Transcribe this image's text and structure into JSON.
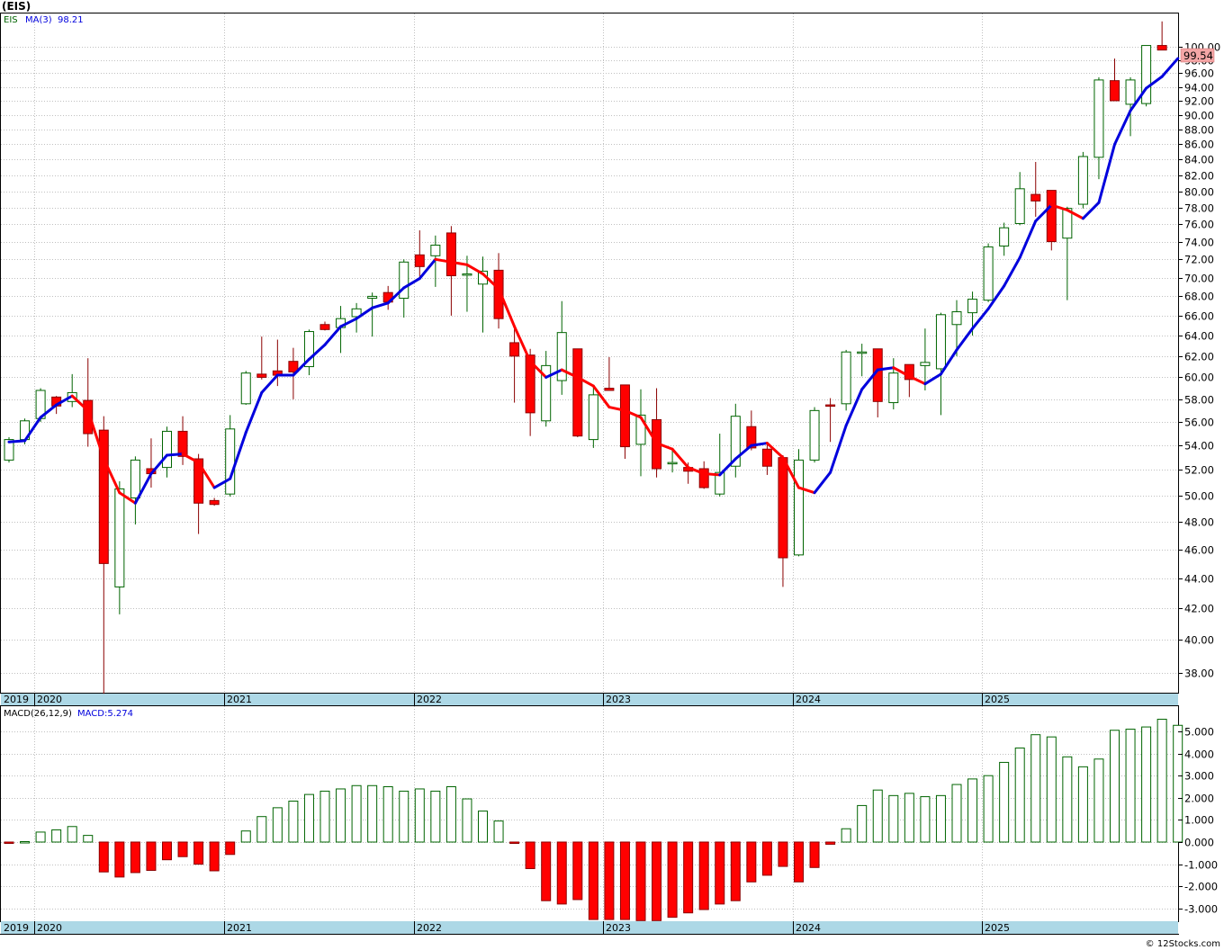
{
  "symbol_title": "(EIS)",
  "watermark": "© 12Stocks.com",
  "price_panel": {
    "legend_symbol": "EIS",
    "ma_label": "MA(3)",
    "ma_value": "98.21",
    "last_price": "99.54",
    "y_ticks": [
      "38.00",
      "40.00",
      "42.00",
      "44.00",
      "46.00",
      "48.00",
      "50.00",
      "52.00",
      "54.00",
      "56.00",
      "58.00",
      "60.00",
      "62.00",
      "64.00",
      "66.00",
      "68.00",
      "70.00",
      "72.00",
      "74.00",
      "76.00",
      "78.00",
      "80.00",
      "82.00",
      "84.00",
      "86.00",
      "88.00",
      "90.00",
      "92.00",
      "94.00",
      "96.00",
      "98.00",
      "100.00"
    ]
  },
  "macd_panel": {
    "label": "MACD(26,12,9)",
    "value_label": "MACD:5.274",
    "y_ticks": [
      "-3.000",
      "-2.000",
      "-1.000",
      "0.000",
      "1.000",
      "2.000",
      "3.000",
      "4.000",
      "5.000"
    ]
  },
  "x_axis": {
    "years": [
      "2019",
      "2020",
      "2021",
      "2022",
      "2023",
      "2024",
      "2025"
    ]
  },
  "colors": {
    "up": "#006400",
    "down": "#ff0000",
    "ma_up": "#0000dd",
    "ma_down": "#ff0000",
    "axis_band": "#add8e6",
    "grid": "#c0c0c0"
  },
  "chart_data": [
    {
      "type": "candlestick",
      "title": "(EIS)",
      "interval": "monthly",
      "ylim": [
        36.5,
        104.0
      ],
      "scale": "log",
      "candles": [
        {
          "date": "2019-11",
          "o": 52.8,
          "h": 54.7,
          "l": 52.6,
          "c": 54.5
        },
        {
          "date": "2019-12",
          "o": 54.5,
          "h": 56.3,
          "l": 54.1,
          "c": 56.1
        },
        {
          "date": "2020-01",
          "o": 56.3,
          "h": 59.0,
          "l": 56.0,
          "c": 58.8
        },
        {
          "date": "2020-02",
          "o": 58.2,
          "h": 58.3,
          "l": 56.7,
          "c": 57.4
        },
        {
          "date": "2020-03",
          "o": 57.8,
          "h": 60.3,
          "l": 57.3,
          "c": 58.6
        },
        {
          "date": "2020-04",
          "o": 57.9,
          "h": 61.8,
          "l": 53.9,
          "c": 55.0
        },
        {
          "date": "2020-05",
          "o": 55.3,
          "h": 56.5,
          "l": 36.8,
          "c": 45.0
        },
        {
          "date": "2020-06",
          "o": 43.4,
          "h": 51.1,
          "l": 41.6,
          "c": 50.5
        },
        {
          "date": "2020-07",
          "o": 49.8,
          "h": 53.1,
          "l": 47.8,
          "c": 52.8
        },
        {
          "date": "2020-08",
          "o": 52.1,
          "h": 54.6,
          "l": 50.6,
          "c": 51.7
        },
        {
          "date": "2020-09",
          "o": 52.2,
          "h": 55.6,
          "l": 51.4,
          "c": 55.2
        },
        {
          "date": "2020-10",
          "o": 55.2,
          "h": 56.5,
          "l": 52.4,
          "c": 53.1
        },
        {
          "date": "2020-11",
          "o": 52.9,
          "h": 53.3,
          "l": 47.1,
          "c": 49.4
        },
        {
          "date": "2020-12",
          "o": 49.6,
          "h": 49.8,
          "l": 49.2,
          "c": 49.3
        },
        {
          "date": "2021-01",
          "o": 50.1,
          "h": 56.6,
          "l": 49.9,
          "c": 55.4
        },
        {
          "date": "2021-02",
          "o": 57.6,
          "h": 60.6,
          "l": 57.5,
          "c": 60.4
        },
        {
          "date": "2021-03",
          "o": 60.3,
          "h": 63.9,
          "l": 59.8,
          "c": 60.0
        },
        {
          "date": "2021-04",
          "o": 60.6,
          "h": 63.6,
          "l": 59.2,
          "c": 60.2
        },
        {
          "date": "2021-05",
          "o": 61.5,
          "h": 62.8,
          "l": 58.0,
          "c": 60.5
        },
        {
          "date": "2021-06",
          "o": 61.0,
          "h": 64.6,
          "l": 60.2,
          "c": 64.4
        },
        {
          "date": "2021-07",
          "o": 65.1,
          "h": 65.4,
          "l": 64.5,
          "c": 64.6
        },
        {
          "date": "2021-08",
          "o": 64.8,
          "h": 67.0,
          "l": 62.3,
          "c": 65.7
        },
        {
          "date": "2021-09",
          "o": 65.9,
          "h": 67.3,
          "l": 64.3,
          "c": 66.7
        },
        {
          "date": "2021-10",
          "o": 67.8,
          "h": 68.4,
          "l": 63.9,
          "c": 68.0
        },
        {
          "date": "2021-11",
          "o": 68.4,
          "h": 69.1,
          "l": 66.6,
          "c": 67.4
        },
        {
          "date": "2021-12",
          "o": 67.8,
          "h": 72.0,
          "l": 65.8,
          "c": 71.7
        },
        {
          "date": "2022-01",
          "o": 72.5,
          "h": 75.3,
          "l": 70.1,
          "c": 71.2
        },
        {
          "date": "2022-02",
          "o": 72.4,
          "h": 74.7,
          "l": 69.0,
          "c": 73.6
        },
        {
          "date": "2022-03",
          "o": 75.0,
          "h": 75.8,
          "l": 66.0,
          "c": 70.2
        },
        {
          "date": "2022-04",
          "o": 70.3,
          "h": 72.4,
          "l": 66.4,
          "c": 70.4
        },
        {
          "date": "2022-05",
          "o": 69.3,
          "h": 72.3,
          "l": 64.3,
          "c": 70.7
        },
        {
          "date": "2022-06",
          "o": 70.8,
          "h": 72.7,
          "l": 64.7,
          "c": 65.7
        },
        {
          "date": "2022-07",
          "o": 63.3,
          "h": 64.8,
          "l": 57.7,
          "c": 62.0
        },
        {
          "date": "2022-08",
          "o": 62.1,
          "h": 62.7,
          "l": 54.8,
          "c": 56.8
        },
        {
          "date": "2022-09",
          "o": 56.1,
          "h": 62.5,
          "l": 55.6,
          "c": 61.1
        },
        {
          "date": "2022-10",
          "o": 59.7,
          "h": 67.5,
          "l": 58.4,
          "c": 64.3
        },
        {
          "date": "2022-11",
          "o": 62.7,
          "h": 62.7,
          "l": 54.7,
          "c": 54.8
        },
        {
          "date": "2022-12",
          "o": 54.5,
          "h": 59.2,
          "l": 53.8,
          "c": 58.4
        },
        {
          "date": "2023-01",
          "o": 59.0,
          "h": 61.9,
          "l": 58.8,
          "c": 58.8
        },
        {
          "date": "2023-02",
          "o": 59.3,
          "h": 59.2,
          "l": 52.9,
          "c": 53.9
        },
        {
          "date": "2023-03",
          "o": 54.1,
          "h": 58.9,
          "l": 51.5,
          "c": 56.6
        },
        {
          "date": "2023-04",
          "o": 56.2,
          "h": 59.0,
          "l": 51.4,
          "c": 52.1
        },
        {
          "date": "2023-05",
          "o": 52.6,
          "h": 53.6,
          "l": 51.8,
          "c": 52.6
        },
        {
          "date": "2023-06",
          "o": 52.2,
          "h": 52.6,
          "l": 50.9,
          "c": 51.9
        },
        {
          "date": "2023-07",
          "o": 52.1,
          "h": 52.7,
          "l": 50.5,
          "c": 50.6
        },
        {
          "date": "2023-08",
          "o": 50.1,
          "h": 55.0,
          "l": 49.9,
          "c": 51.8
        },
        {
          "date": "2023-09",
          "o": 52.3,
          "h": 57.6,
          "l": 51.4,
          "c": 56.5
        },
        {
          "date": "2023-10",
          "o": 55.6,
          "h": 57.0,
          "l": 53.6,
          "c": 53.8
        },
        {
          "date": "2023-11",
          "o": 53.7,
          "h": 54.3,
          "l": 51.6,
          "c": 52.3
        },
        {
          "date": "2023-12",
          "o": 53.0,
          "h": 53.2,
          "l": 43.4,
          "c": 45.4
        },
        {
          "date": "2024-01",
          "o": 45.6,
          "h": 53.7,
          "l": 45.5,
          "c": 52.8
        },
        {
          "date": "2024-02",
          "o": 52.8,
          "h": 57.3,
          "l": 52.6,
          "c": 57.0
        },
        {
          "date": "2024-03",
          "o": 57.5,
          "h": 58.1,
          "l": 54.3,
          "c": 57.4
        },
        {
          "date": "2024-04",
          "o": 57.6,
          "h": 62.6,
          "l": 57.0,
          "c": 62.4
        },
        {
          "date": "2024-05",
          "o": 62.4,
          "h": 63.2,
          "l": 60.1,
          "c": 62.4
        },
        {
          "date": "2024-06",
          "o": 62.7,
          "h": 62.7,
          "l": 56.4,
          "c": 57.8
        },
        {
          "date": "2024-07",
          "o": 57.7,
          "h": 61.8,
          "l": 57.1,
          "c": 60.4
        },
        {
          "date": "2024-08",
          "o": 61.2,
          "h": 60.7,
          "l": 58.2,
          "c": 59.8
        },
        {
          "date": "2024-09",
          "o": 61.1,
          "h": 64.7,
          "l": 58.8,
          "c": 61.4
        },
        {
          "date": "2024-10",
          "o": 60.8,
          "h": 66.3,
          "l": 56.6,
          "c": 66.1
        },
        {
          "date": "2024-11",
          "o": 65.1,
          "h": 67.6,
          "l": 62.0,
          "c": 66.4
        },
        {
          "date": "2024-12",
          "o": 66.3,
          "h": 68.5,
          "l": 64.0,
          "c": 67.7
        },
        {
          "date": "2025-01",
          "o": 67.6,
          "h": 73.8,
          "l": 67.4,
          "c": 73.4
        },
        {
          "date": "2025-02",
          "o": 73.5,
          "h": 76.2,
          "l": 72.4,
          "c": 75.6
        },
        {
          "date": "2025-03",
          "o": 76.1,
          "h": 82.4,
          "l": 75.9,
          "c": 80.3
        },
        {
          "date": "2025-04",
          "o": 79.6,
          "h": 83.7,
          "l": 76.9,
          "c": 78.8
        },
        {
          "date": "2025-05",
          "o": 80.1,
          "h": 80.0,
          "l": 73.0,
          "c": 74.0
        },
        {
          "date": "2025-06",
          "o": 74.4,
          "h": 78.1,
          "l": 67.6,
          "c": 77.9
        },
        {
          "date": "2025-07",
          "o": 78.4,
          "h": 85.0,
          "l": 77.9,
          "c": 84.4
        },
        {
          "date": "2025-08",
          "o": 84.3,
          "h": 95.4,
          "l": 81.5,
          "c": 95.0
        },
        {
          "date": "2025-09",
          "o": 94.9,
          "h": 98.2,
          "l": 92.1,
          "c": 92.0
        },
        {
          "date": "2025-10",
          "o": 91.5,
          "h": 95.4,
          "l": 87.1,
          "c": 95.0
        },
        {
          "date": "2025-11",
          "o": 91.6,
          "h": 100.2,
          "l": 91.2,
          "c": 100.2
        },
        {
          "date": "2025-12",
          "o": 100.2,
          "h": 104.0,
          "l": 99.5,
          "c": 99.5
        }
      ],
      "ma3": [
        54.3,
        54.4,
        56.4,
        57.5,
        58.3,
        57.0,
        52.9,
        50.2,
        49.4,
        51.7,
        53.2,
        53.3,
        52.6,
        50.6,
        51.3,
        55.1,
        58.6,
        60.2,
        60.2,
        61.7,
        63.1,
        64.9,
        65.7,
        66.8,
        67.3,
        68.9,
        69.9,
        72.0,
        71.7,
        71.4,
        70.4,
        68.8,
        64.9,
        61.5,
        60.0,
        60.7,
        60.0,
        59.2,
        57.3,
        57.0,
        56.4,
        54.2,
        53.7,
        52.2,
        51.7,
        51.6,
        52.9,
        54.0,
        54.2,
        53.0,
        50.6,
        50.2,
        51.8,
        55.7,
        58.9,
        60.7,
        60.9,
        60.1,
        59.4,
        60.3,
        62.6,
        64.7,
        66.7,
        69.1,
        72.2,
        76.4,
        78.3,
        77.7,
        76.7,
        78.6,
        86.0,
        90.6,
        93.8,
        95.5,
        98.2
      ],
      "last_price": 99.54,
      "ma3_last": 98.21
    },
    {
      "type": "bar",
      "title": "MACD(26,12,9)",
      "ylim": [
        -3.6,
        5.9
      ],
      "last_value": 5.274,
      "values": [
        -0.06,
        0.02,
        0.45,
        0.55,
        0.7,
        0.3,
        -1.35,
        -1.58,
        -1.38,
        -1.28,
        -0.8,
        -0.66,
        -1.0,
        -1.3,
        -0.56,
        0.5,
        1.15,
        1.55,
        1.85,
        2.15,
        2.3,
        2.4,
        2.55,
        2.55,
        2.5,
        2.3,
        2.4,
        2.3,
        2.5,
        1.95,
        1.4,
        0.95,
        -0.02,
        -1.2,
        -2.65,
        -2.8,
        -2.6,
        -3.5,
        -3.5,
        -3.5,
        -3.55,
        -3.55,
        -3.4,
        -3.2,
        -3.05,
        -2.8,
        -2.65,
        -1.8,
        -1.5,
        -1.1,
        -1.8,
        -1.15,
        -0.1,
        0.6,
        1.65,
        2.35,
        2.1,
        2.2,
        2.05,
        2.1,
        2.6,
        2.85,
        3.0,
        3.6,
        4.25,
        4.85,
        4.75,
        3.85,
        3.4,
        3.75,
        5.05,
        5.1,
        5.2,
        5.55,
        5.274
      ]
    }
  ]
}
